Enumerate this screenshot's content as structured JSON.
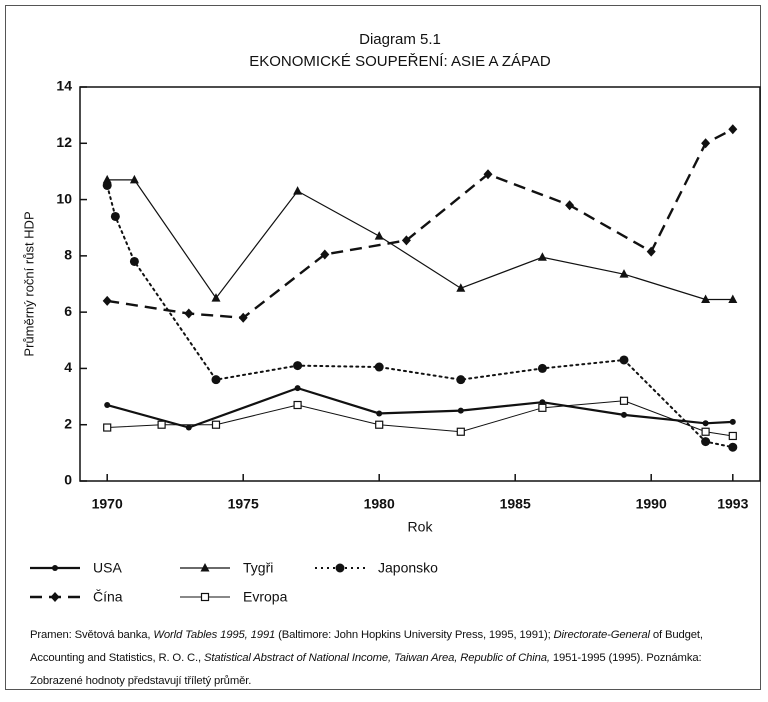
{
  "chart_data": {
    "type": "line",
    "title": "Diagram 5.1",
    "subtitle": "EKONOMICKÉ SOUPEŘENÍ: ASIE A ZÁPAD",
    "ylabel": "Průměrný roční růst HDP",
    "xlabel": "Rok",
    "xlim": [
      1969,
      1994
    ],
    "xticks": [
      1970,
      1975,
      1980,
      1985,
      1990,
      1993
    ],
    "ylim": [
      0,
      14
    ],
    "yticks": [
      0,
      2,
      4,
      6,
      8,
      10,
      12,
      14
    ],
    "series": [
      {
        "name": "USA",
        "color": "#111111",
        "dash": "solid",
        "marker": "dot",
        "width": 2.2,
        "x": [
          1970,
          1973,
          1977,
          1980,
          1983,
          1986,
          1989,
          1992,
          1993
        ],
        "values": [
          2.7,
          1.9,
          3.3,
          2.4,
          2.5,
          2.8,
          2.35,
          2.05,
          2.1
        ]
      },
      {
        "name": "Tygři",
        "color": "#111111",
        "dash": "solid",
        "marker": "triangle",
        "width": 1.2,
        "x": [
          1970,
          1971,
          1974,
          1977,
          1980,
          1983,
          1986,
          1989,
          1992,
          1993
        ],
        "values": [
          10.7,
          10.7,
          6.5,
          10.3,
          8.7,
          6.85,
          7.95,
          7.35,
          6.45,
          6.45
        ]
      },
      {
        "name": "Japonsko",
        "color": "#111111",
        "dash": "dotted",
        "marker": "circle",
        "width": 2,
        "x": [
          1970,
          1970.3,
          1971,
          1974,
          1977,
          1980,
          1983,
          1986,
          1989,
          1992,
          1993
        ],
        "values": [
          10.5,
          9.4,
          7.8,
          3.6,
          4.1,
          4.05,
          3.6,
          4.0,
          4.3,
          1.4,
          1.2
        ]
      },
      {
        "name": "Čína",
        "color": "#111111",
        "dash": "dashed",
        "marker": "diamond",
        "width": 2.4,
        "x": [
          1970,
          1973,
          1975,
          1978,
          1981,
          1984,
          1987,
          1990,
          1992,
          1993
        ],
        "values": [
          6.4,
          5.95,
          5.8,
          8.05,
          8.55,
          10.9,
          9.8,
          8.15,
          12.0,
          12.5
        ]
      },
      {
        "name": "Evropa",
        "color": "#111111",
        "dash": "solid",
        "marker": "square",
        "width": 1,
        "x": [
          1970,
          1972,
          1974,
          1977,
          1980,
          1983,
          1986,
          1989,
          1992,
          1993
        ],
        "values": [
          1.9,
          2.0,
          2.0,
          2.7,
          2.0,
          1.75,
          2.6,
          2.85,
          1.75,
          1.6
        ]
      }
    ],
    "note": [
      {
        "text": "Pramen: Světová banka, ",
        "italic": false
      },
      {
        "text": "World Tables 1995, 1991",
        "italic": true
      },
      {
        "text": " (Baltimore: John Hopkins University Press, 1995, 1991); ",
        "italic": false
      },
      {
        "text": "Directorate-General",
        "italic": true
      },
      {
        "text": " of Budget, Accounting and Statistics, R. O. C., ",
        "italic": false
      },
      {
        "text": "Statistical Abstract of National Income, Taiwan Area, Republic of China,",
        "italic": true
      },
      {
        "text": " 1951-1995 (1995). Poznámka: Zobrazené hodnoty představují tříletý průměr.",
        "italic": false
      }
    ]
  }
}
